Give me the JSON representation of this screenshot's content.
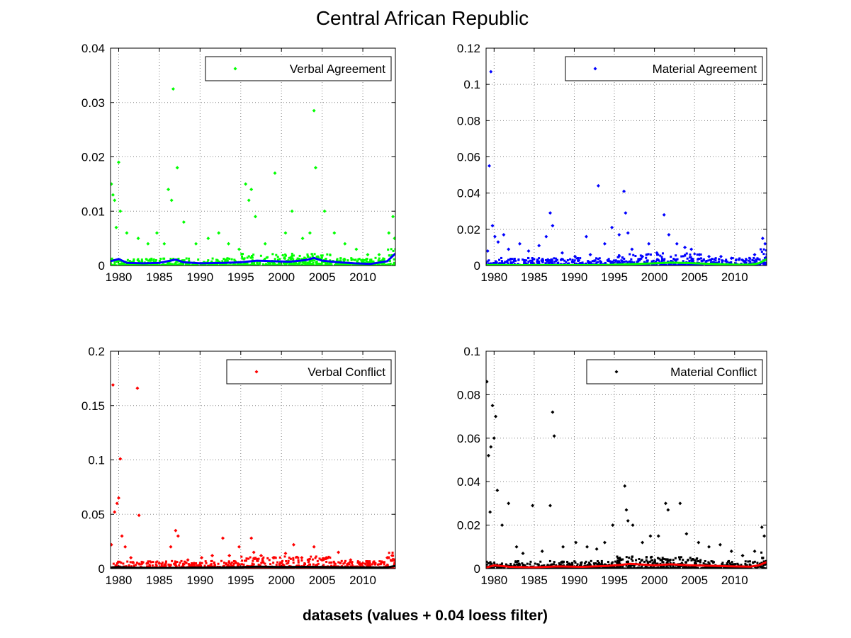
{
  "figure": {
    "title": "Central African Republic",
    "footer": "datasets (values + 0.04 loess filter)"
  },
  "chart_data": [
    {
      "type": "scatter",
      "title": "",
      "xlabel": "",
      "ylabel": "",
      "xlim": [
        1979,
        2014
      ],
      "ylim": [
        0,
        0.04
      ],
      "xticks": [
        "1980",
        "1985",
        "1990",
        "1995",
        "2000",
        "2005",
        "2010"
      ],
      "yticks": [
        "0",
        "0.01",
        "0.02",
        "0.03",
        "0.04"
      ],
      "grid": true,
      "legend_position": "top-right",
      "legend": [
        "Verbal Agreement"
      ],
      "point_color": "#00ff00",
      "smooth_color": "#0000ff",
      "series": [
        {
          "name": "Verbal Agreement",
          "x": [
            1979.1,
            1979.3,
            1979.5,
            1979.7,
            1980.0,
            1980.2,
            1981.0,
            1982.4,
            1983.6,
            1984.7,
            1985.6,
            1986.1,
            1986.5,
            1986.7,
            1987.2,
            1988.0,
            1989.5,
            1991.0,
            1992.3,
            1993.5,
            1994.8,
            1995.6,
            1996.0,
            1996.3,
            1996.8,
            1998.0,
            1999.2,
            2000.5,
            2001.3,
            2002.6,
            2003.5,
            2004.0,
            2004.2,
            2005.3,
            2006.5,
            2007.8,
            2009.2,
            2010.6,
            2012.0,
            2013.2,
            2013.7,
            2013.9
          ],
          "y": [
            0.015,
            0.013,
            0.012,
            0.007,
            0.019,
            0.01,
            0.006,
            0.005,
            0.004,
            0.006,
            0.004,
            0.014,
            0.012,
            0.0325,
            0.018,
            0.008,
            0.004,
            0.005,
            0.006,
            0.004,
            0.003,
            0.015,
            0.012,
            0.014,
            0.009,
            0.004,
            0.017,
            0.006,
            0.01,
            0.005,
            0.006,
            0.0285,
            0.018,
            0.01,
            0.006,
            0.004,
            0.003,
            0.002,
            0.002,
            0.006,
            0.009,
            0.005
          ]
        },
        {
          "name": "",
          "x": [
            1979,
            1980,
            1981,
            1983,
            1985,
            1987,
            1988,
            1990,
            1993,
            1995,
            1997,
            1999,
            2001,
            2003,
            2004,
            2005,
            2007,
            2009,
            2011,
            2013,
            2014
          ],
          "y": [
            0.0008,
            0.0012,
            0.0005,
            0.0004,
            0.0005,
            0.0011,
            0.0006,
            0.0004,
            0.0005,
            0.0006,
            0.0009,
            0.0008,
            0.0007,
            0.001,
            0.0014,
            0.0009,
            0.0006,
            0.0004,
            0.0003,
            0.0008,
            0.0022
          ]
        }
      ]
    },
    {
      "type": "scatter",
      "title": "",
      "xlabel": "",
      "ylabel": "",
      "xlim": [
        1979,
        2014
      ],
      "ylim": [
        0,
        0.12
      ],
      "xticks": [
        "1980",
        "1985",
        "1990",
        "1995",
        "2000",
        "2005",
        "2010"
      ],
      "yticks": [
        "0",
        "0.02",
        "0.04",
        "0.06",
        "0.08",
        "0.1",
        "0.12"
      ],
      "grid": true,
      "legend_position": "top-right",
      "legend": [
        "Material Agreement"
      ],
      "point_color": "#0000ff",
      "smooth_color": "#00ff00",
      "series": [
        {
          "name": "Material Agreement",
          "x": [
            1979.2,
            1979.4,
            1979.6,
            1979.8,
            1980.1,
            1980.5,
            1981.2,
            1981.8,
            1983.2,
            1984.3,
            1985.6,
            1986.5,
            1987.0,
            1987.3,
            1988.5,
            1990.1,
            1991.5,
            1992.0,
            1993.0,
            1993.8,
            1994.7,
            1995.6,
            1996.2,
            1996.4,
            1996.7,
            1997.2,
            1998.5,
            1999.3,
            2000.3,
            2001.2,
            2001.8,
            2002.8,
            2003.8,
            2004.6,
            2005.6,
            2006.8,
            2008.3,
            2009.6,
            2011.0,
            2012.5,
            2013.5,
            2013.8
          ],
          "y": [
            0.008,
            0.055,
            0.107,
            0.022,
            0.016,
            0.013,
            0.017,
            0.009,
            0.012,
            0.008,
            0.011,
            0.016,
            0.029,
            0.022,
            0.007,
            0.005,
            0.016,
            0.006,
            0.044,
            0.012,
            0.021,
            0.017,
            0.041,
            0.029,
            0.018,
            0.009,
            0.005,
            0.012,
            0.007,
            0.028,
            0.017,
            0.012,
            0.01,
            0.009,
            0.006,
            0.005,
            0.005,
            0.004,
            0.003,
            0.006,
            0.015,
            0.012
          ]
        },
        {
          "name": "",
          "x": [
            1979,
            1980,
            1982,
            1985,
            1988,
            1991,
            1994,
            1997,
            2000,
            2002,
            2004,
            2006,
            2008,
            2010,
            2012,
            2013,
            2014
          ],
          "y": [
            0.0002,
            0.0003,
            0.0002,
            0.0002,
            0.0002,
            0.0002,
            0.0003,
            0.0008,
            0.0012,
            0.0016,
            0.0014,
            0.0011,
            0.0008,
            0.0005,
            0.0005,
            0.0012,
            0.0035
          ]
        }
      ]
    },
    {
      "type": "scatter",
      "title": "",
      "xlabel": "",
      "ylabel": "",
      "xlim": [
        1979,
        2014
      ],
      "ylim": [
        0,
        0.2
      ],
      "xticks": [
        "1980",
        "1985",
        "1990",
        "1995",
        "2000",
        "2005",
        "2010"
      ],
      "yticks": [
        "0",
        "0.05",
        "0.1",
        "0.15",
        "0.2"
      ],
      "grid": true,
      "legend_position": "top-right",
      "legend": [
        "Verbal Conflict"
      ],
      "point_color": "#ff0000",
      "smooth_color": "#000000",
      "series": [
        {
          "name": "Verbal Conflict",
          "x": [
            1979.1,
            1979.3,
            1979.5,
            1979.8,
            1980.0,
            1980.2,
            1980.4,
            1980.8,
            1981.5,
            1982.3,
            1982.5,
            1983.5,
            1985.0,
            1986.4,
            1987.0,
            1987.3,
            1988.5,
            1990.2,
            1991.5,
            1992.8,
            1993.6,
            1994.8,
            1996.3,
            1996.6,
            1997.5,
            1999.0,
            2000.5,
            2001.5,
            2002.5,
            2004.0,
            2005.5,
            2007.0,
            2008.5,
            2010.0,
            2011.5,
            2013.0,
            2013.6,
            2013.9
          ],
          "y": [
            0.022,
            0.169,
            0.052,
            0.06,
            0.065,
            0.101,
            0.03,
            0.02,
            0.01,
            0.166,
            0.049,
            0.005,
            0.005,
            0.02,
            0.035,
            0.03,
            0.008,
            0.01,
            0.012,
            0.028,
            0.012,
            0.02,
            0.028,
            0.015,
            0.012,
            0.01,
            0.014,
            0.022,
            0.01,
            0.02,
            0.01,
            0.015,
            0.008,
            0.005,
            0.004,
            0.01,
            0.012,
            0.008
          ]
        },
        {
          "name": "",
          "x": [
            1979,
            1980,
            1982,
            1985,
            1988,
            1991,
            1994,
            1997,
            2000,
            2003,
            2006,
            2009,
            2012,
            2013,
            2014
          ],
          "y": [
            0.001,
            0.0015,
            0.0008,
            0.0006,
            0.0008,
            0.001,
            0.0012,
            0.0018,
            0.0015,
            0.0016,
            0.0014,
            0.0012,
            0.001,
            0.0012,
            0.0025
          ]
        }
      ]
    },
    {
      "type": "scatter",
      "title": "",
      "xlabel": "",
      "ylabel": "",
      "xlim": [
        1979,
        2014
      ],
      "ylim": [
        0,
        0.1
      ],
      "xticks": [
        "1980",
        "1985",
        "1990",
        "1995",
        "2000",
        "2005",
        "2010"
      ],
      "yticks": [
        "0",
        "0.02",
        "0.04",
        "0.06",
        "0.08",
        "0.1"
      ],
      "grid": true,
      "legend_position": "top-right",
      "legend": [
        "Material Conflict"
      ],
      "point_color": "#000000",
      "smooth_color": "#ff0000",
      "series": [
        {
          "name": "Material Conflict",
          "x": [
            1979.1,
            1979.3,
            1979.5,
            1979.6,
            1979.8,
            1980.0,
            1980.2,
            1980.4,
            1981.0,
            1981.8,
            1982.8,
            1983.6,
            1984.8,
            1986.0,
            1987.0,
            1987.3,
            1987.5,
            1988.6,
            1990.2,
            1991.6,
            1992.8,
            1993.8,
            1994.8,
            1996.3,
            1996.5,
            1996.7,
            1997.3,
            1998.5,
            1999.5,
            2000.5,
            2001.4,
            2001.7,
            2003.2,
            2004.0,
            2005.5,
            2006.8,
            2008.2,
            2009.6,
            2011.0,
            2012.5,
            2013.4,
            2013.7
          ],
          "y": [
            0.086,
            0.052,
            0.026,
            0.056,
            0.075,
            0.06,
            0.07,
            0.036,
            0.02,
            0.03,
            0.01,
            0.007,
            0.029,
            0.008,
            0.029,
            0.072,
            0.061,
            0.01,
            0.012,
            0.01,
            0.009,
            0.012,
            0.02,
            0.038,
            0.027,
            0.022,
            0.02,
            0.012,
            0.015,
            0.015,
            0.03,
            0.027,
            0.03,
            0.016,
            0.012,
            0.01,
            0.011,
            0.008,
            0.006,
            0.008,
            0.019,
            0.015
          ]
        },
        {
          "name": "",
          "x": [
            1979,
            1980,
            1982,
            1985,
            1988,
            1991,
            1994,
            1996,
            1997,
            2000,
            2002,
            2004,
            2006,
            2008,
            2010,
            2012,
            2013,
            2014
          ],
          "y": [
            0.0005,
            0.0015,
            0.0008,
            0.0006,
            0.001,
            0.0008,
            0.0012,
            0.0018,
            0.0022,
            0.0015,
            0.002,
            0.0016,
            0.0014,
            0.0012,
            0.001,
            0.0009,
            0.0015,
            0.003
          ]
        }
      ]
    }
  ]
}
